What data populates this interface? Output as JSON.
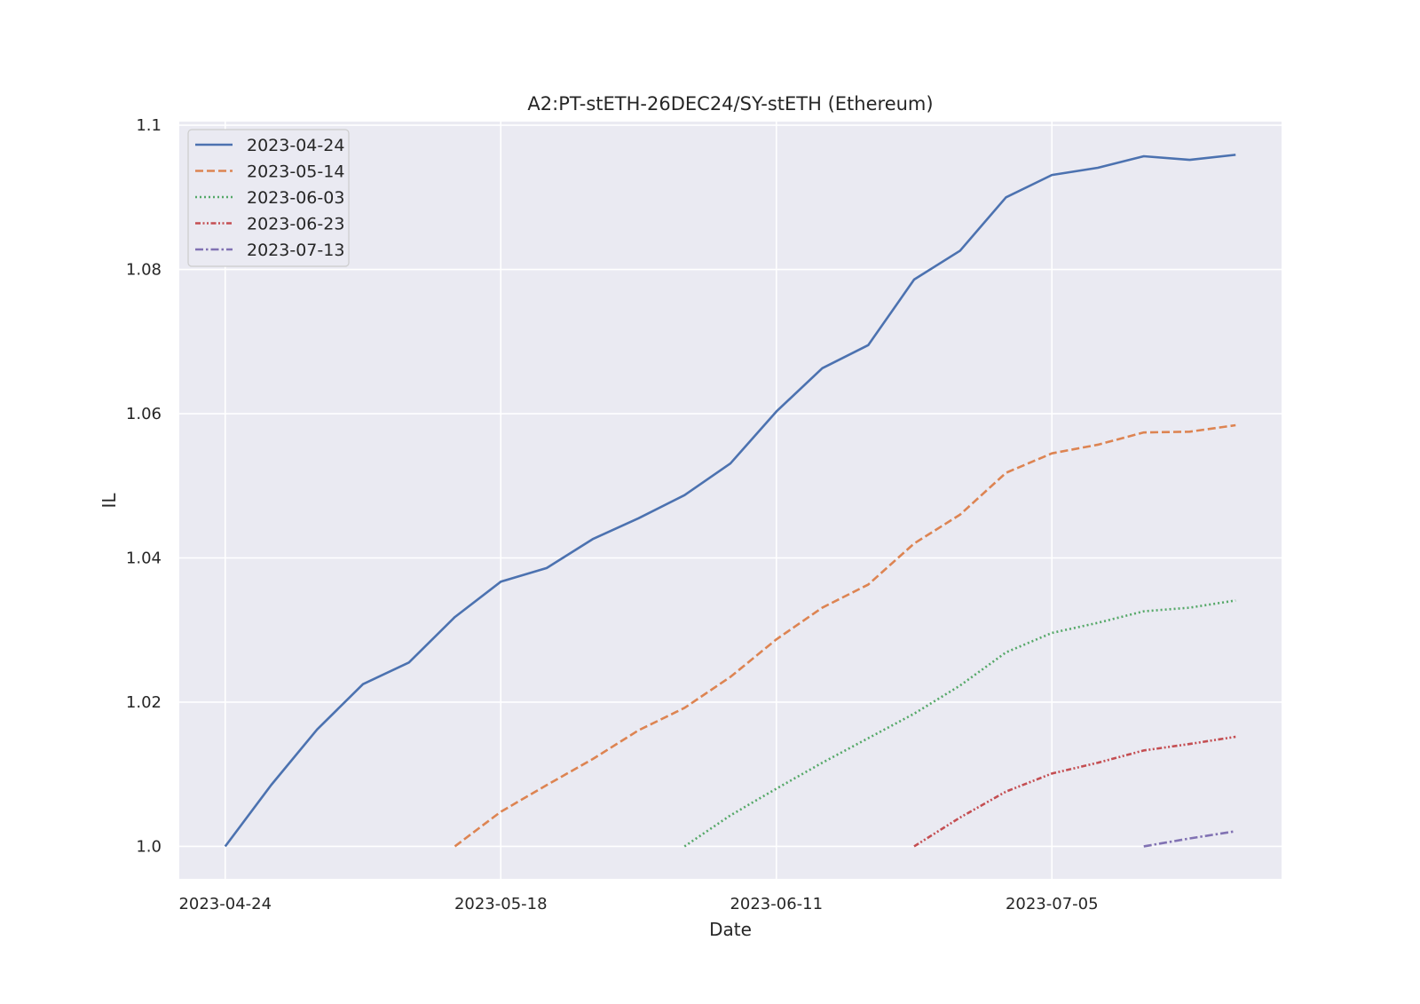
{
  "chart_data": {
    "type": "line",
    "title": "A2:PT-stETH-26DEC24/SY-stETH (Ethereum)",
    "xlabel": "Date",
    "ylabel": "IL",
    "x_ticks": [
      "2023-04-24",
      "2023-05-18",
      "2023-06-11",
      "2023-07-05"
    ],
    "y_ticks": [
      "1.0",
      "1.02",
      "1.04",
      "1.06",
      "1.08",
      "1.1"
    ],
    "ylim": [
      0.9955,
      1.1005
    ],
    "xlim": [
      "2023-04-20",
      "2023-07-25"
    ],
    "grid": true,
    "legend_position": "top-left",
    "background": "#eaeaf2",
    "x": [
      "2023-04-24",
      "2023-04-28",
      "2023-05-02",
      "2023-05-06",
      "2023-05-10",
      "2023-05-14",
      "2023-05-18",
      "2023-05-22",
      "2023-05-26",
      "2023-05-30",
      "2023-06-03",
      "2023-06-07",
      "2023-06-11",
      "2023-06-15",
      "2023-06-19",
      "2023-06-23",
      "2023-06-27",
      "2023-07-01",
      "2023-07-05",
      "2023-07-09",
      "2023-07-13",
      "2023-07-17",
      "2023-07-21"
    ],
    "series": [
      {
        "name": "2023-04-24",
        "color": "#4c72b0",
        "dash": "solid",
        "values": [
          1.0,
          1.0085,
          1.0162,
          1.0225,
          1.0255,
          1.0318,
          1.0367,
          1.0386,
          1.0426,
          1.0455,
          1.0487,
          1.0531,
          1.0603,
          1.0663,
          1.0695,
          1.0786,
          1.0826,
          1.09,
          1.0931,
          1.0941,
          1.0957,
          1.0952,
          1.0959
        ]
      },
      {
        "name": "2023-05-14",
        "color": "#dd8452",
        "dash": "dashed",
        "values": [
          null,
          null,
          null,
          null,
          null,
          1.0,
          1.0048,
          1.0085,
          1.0121,
          1.0161,
          1.0192,
          1.0235,
          1.0287,
          1.0331,
          1.0363,
          1.042,
          1.046,
          1.0518,
          1.0545,
          1.0557,
          1.0574,
          1.0575,
          1.0584
        ]
      },
      {
        "name": "2023-06-03",
        "color": "#55a868",
        "dash": "dotted",
        "values": [
          null,
          null,
          null,
          null,
          null,
          null,
          null,
          null,
          null,
          null,
          1.0,
          1.0043,
          1.008,
          1.0116,
          1.015,
          1.0184,
          1.0223,
          1.0269,
          1.0296,
          1.031,
          1.0326,
          1.0331,
          1.0341
        ]
      },
      {
        "name": "2023-06-23",
        "color": "#c44e52",
        "dash": "dashdotdot",
        "values": [
          null,
          null,
          null,
          null,
          null,
          null,
          null,
          null,
          null,
          null,
          null,
          null,
          null,
          null,
          null,
          1.0,
          1.004,
          1.0076,
          1.0101,
          1.0116,
          1.0133,
          1.0142,
          1.0152
        ]
      },
      {
        "name": "2023-07-13",
        "color": "#8172b3",
        "dash": "dashdot",
        "values": [
          null,
          null,
          null,
          null,
          null,
          null,
          null,
          null,
          null,
          null,
          null,
          null,
          null,
          null,
          null,
          null,
          null,
          null,
          null,
          null,
          1.0,
          1.0011,
          1.0021
        ]
      }
    ]
  }
}
